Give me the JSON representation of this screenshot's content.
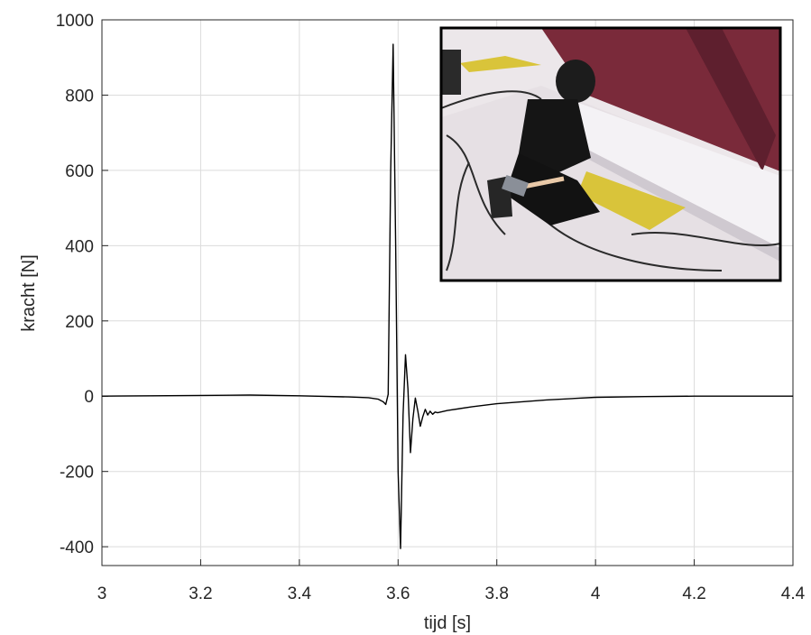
{
  "chart_data": {
    "type": "line",
    "xlabel": "tijd [s]",
    "ylabel": "kracht [N]",
    "xlim": [
      3,
      4.4
    ],
    "ylim": [
      -450,
      1000
    ],
    "xticks": [
      3,
      3.2,
      3.4,
      3.6,
      3.8,
      4,
      4.2,
      4.4
    ],
    "xtick_labels": [
      "3",
      "3.2",
      "3.4",
      "3.6",
      "3.8",
      "4",
      "4.2",
      "4.4"
    ],
    "yticks": [
      -400,
      -200,
      0,
      200,
      400,
      600,
      800,
      1000
    ],
    "ytick_labels": [
      "-400",
      "-200",
      "0",
      "200",
      "400",
      "600",
      "800",
      "1000"
    ],
    "grid": true,
    "line_color": "#000000",
    "series": [
      {
        "x": [
          3.0,
          3.1,
          3.2,
          3.3,
          3.4,
          3.5,
          3.54,
          3.56,
          3.57,
          3.575,
          3.58,
          3.585,
          3.59,
          3.595,
          3.6,
          3.605,
          3.61,
          3.615,
          3.62,
          3.625,
          3.63,
          3.635,
          3.64,
          3.645,
          3.65,
          3.655,
          3.66,
          3.665,
          3.67,
          3.675,
          3.68,
          3.7,
          3.75,
          3.8,
          3.9,
          4.0,
          4.1,
          4.2,
          4.3,
          4.4
        ],
        "y": [
          0,
          1,
          2,
          3,
          1,
          -2,
          -4,
          -8,
          -15,
          -22,
          5,
          600,
          935,
          400,
          -200,
          -405,
          -50,
          110,
          20,
          -150,
          -60,
          -5,
          -40,
          -80,
          -55,
          -35,
          -50,
          -40,
          -48,
          -42,
          -44,
          -38,
          -28,
          -20,
          -10,
          -3,
          -1,
          0,
          0,
          0
        ]
      }
    ],
    "inset_image": "hammer-impact-test-photo"
  }
}
